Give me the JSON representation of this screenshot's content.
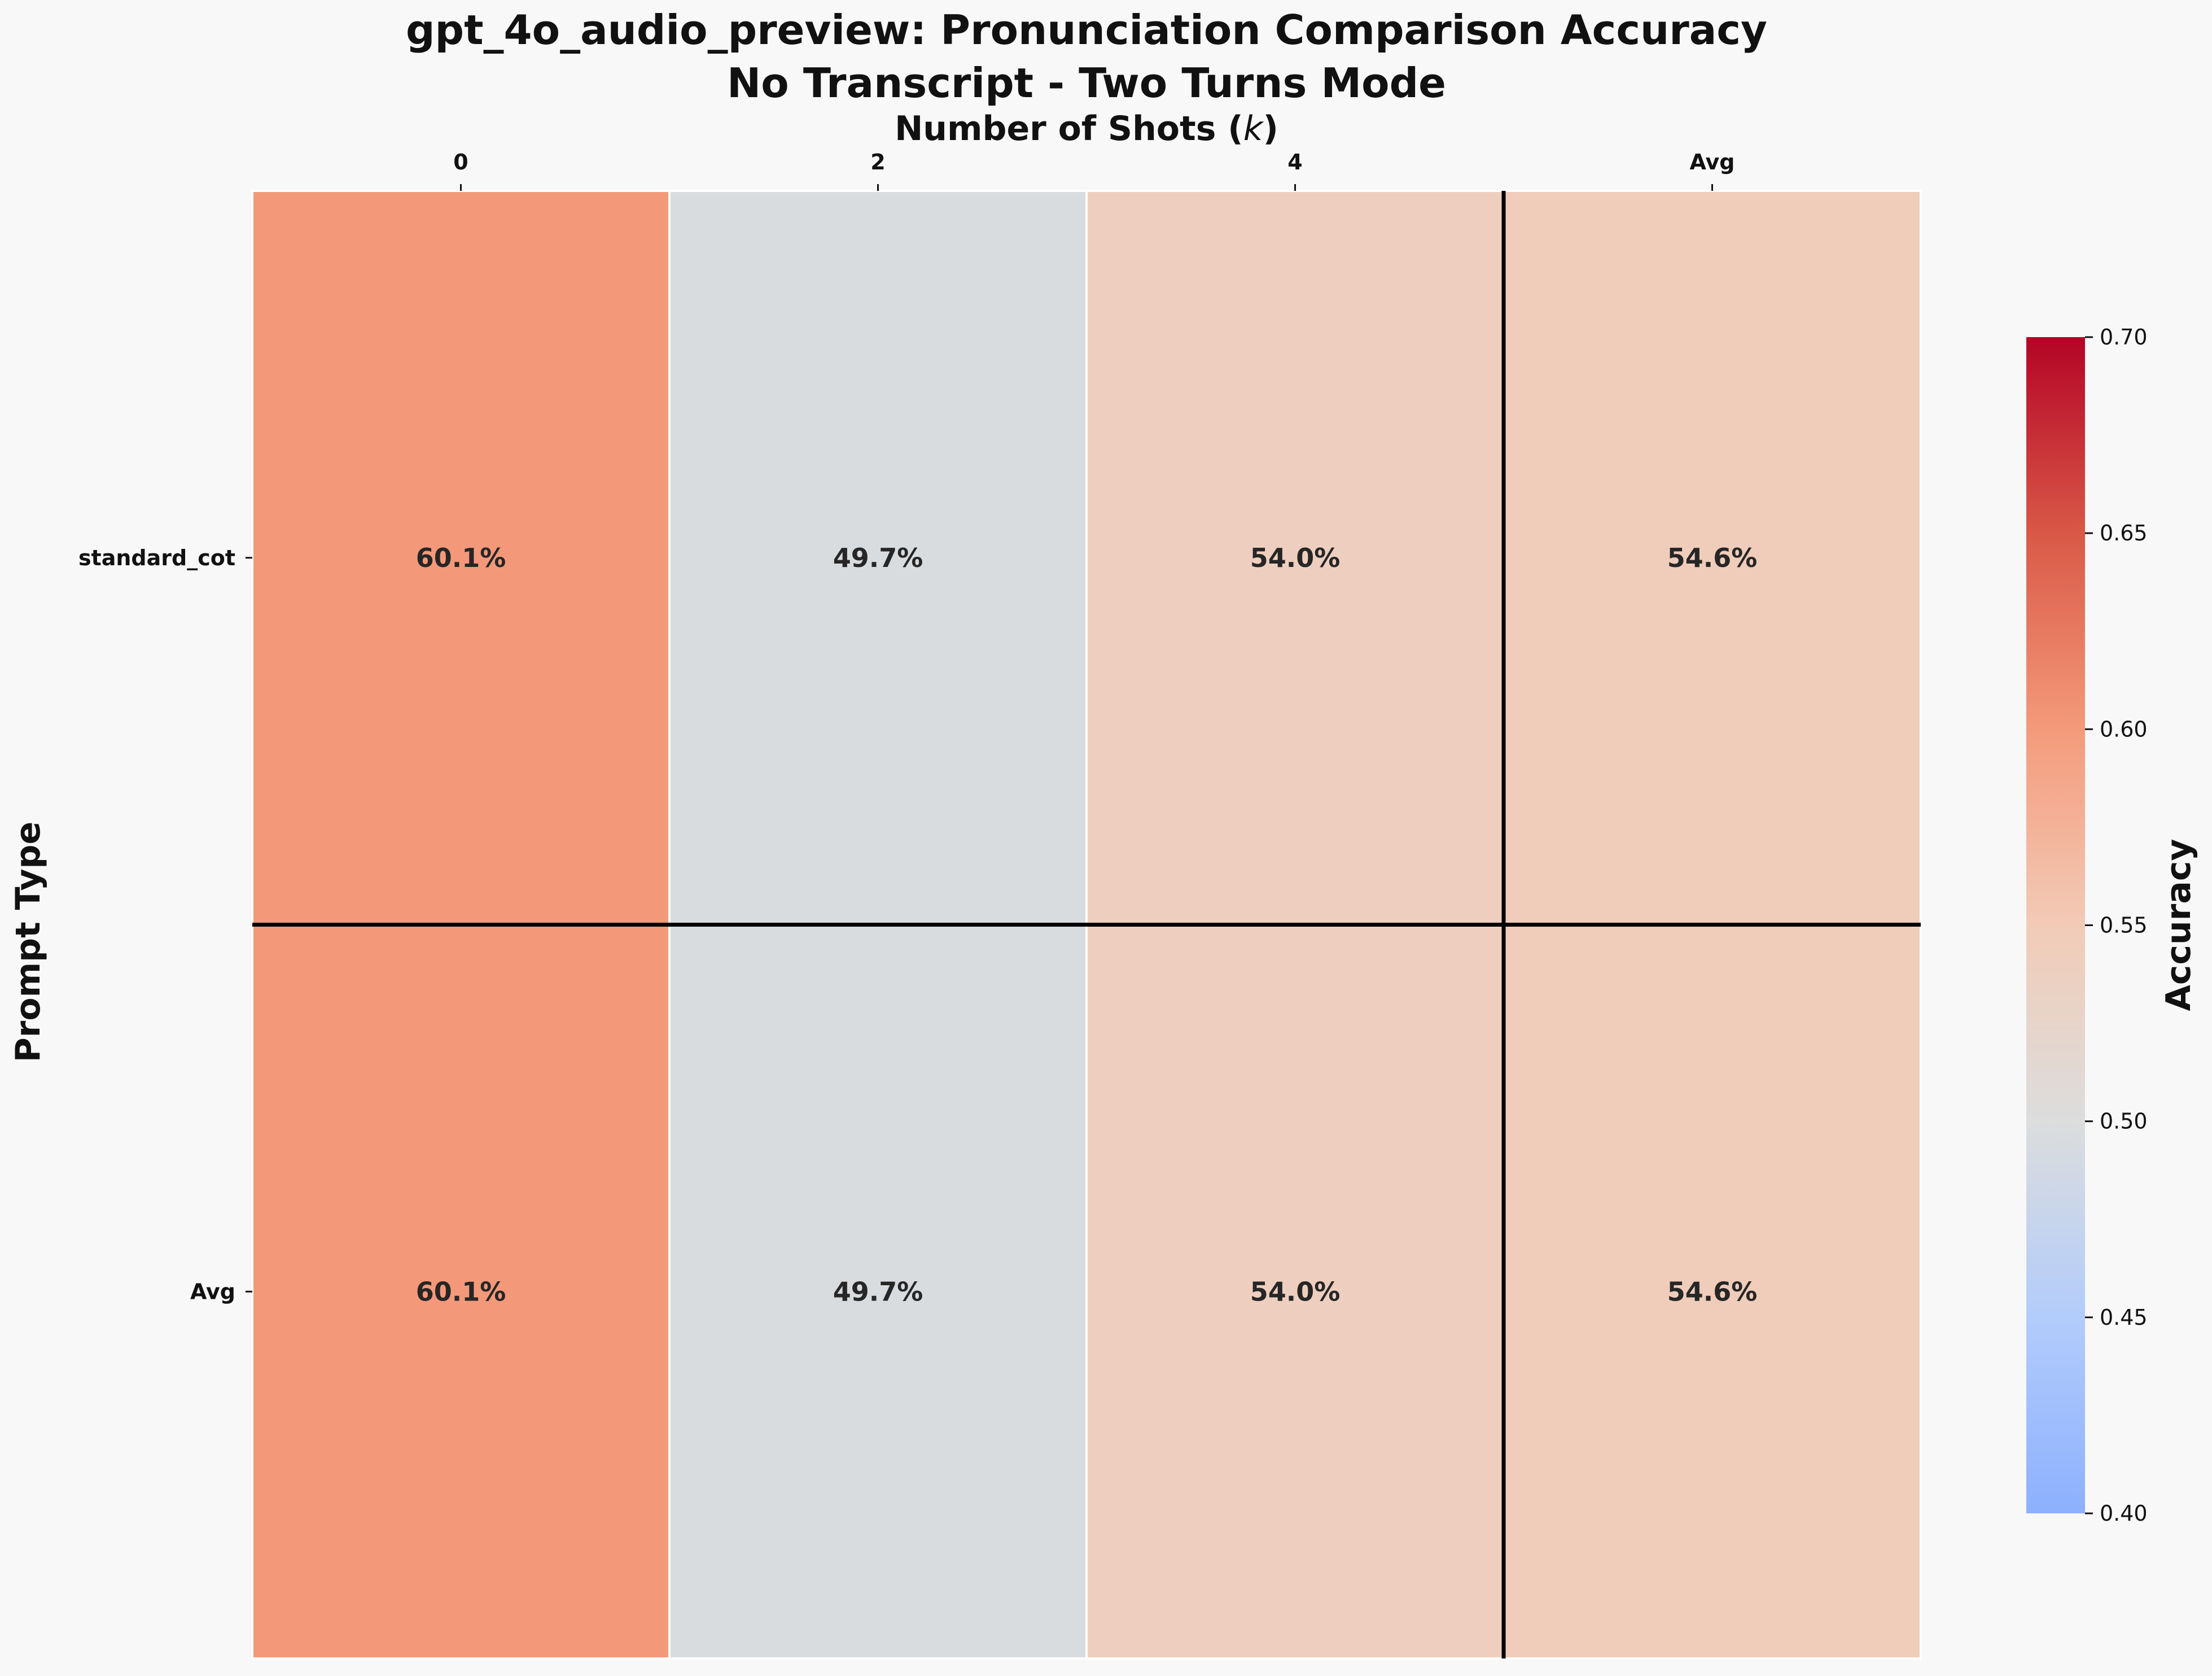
{
  "chart_data": {
    "type": "heatmap",
    "title": "gpt_4o_audio_preview: Pronunciation Comparison Accuracy",
    "subtitle": "No Transcript - Two Turns Mode",
    "xlabel": "Number of Shots (k)",
    "xlabel_prefix": "Number of Shots (",
    "xlabel_var": "k",
    "xlabel_suffix": ")",
    "ylabel": "Prompt Type",
    "x_categories": [
      "0",
      "2",
      "4",
      "Avg"
    ],
    "y_categories": [
      "standard_cot",
      "Avg"
    ],
    "values": [
      [
        0.601,
        0.497,
        0.54,
        0.546
      ],
      [
        0.601,
        0.497,
        0.54,
        0.546
      ]
    ],
    "cell_labels": [
      [
        "60.1%",
        "49.7%",
        "54.0%",
        "54.6%"
      ],
      [
        "60.1%",
        "49.7%",
        "54.0%",
        "54.6%"
      ]
    ],
    "colorbar": {
      "label": "Accuracy",
      "vmin": 0.4,
      "vmax": 0.7,
      "ticks": [
        "0.40",
        "0.45",
        "0.50",
        "0.55",
        "0.60",
        "0.65",
        "0.70"
      ],
      "colormap": "coolwarm"
    },
    "separators": "after last data column and row (Avg)",
    "grid": false
  }
}
